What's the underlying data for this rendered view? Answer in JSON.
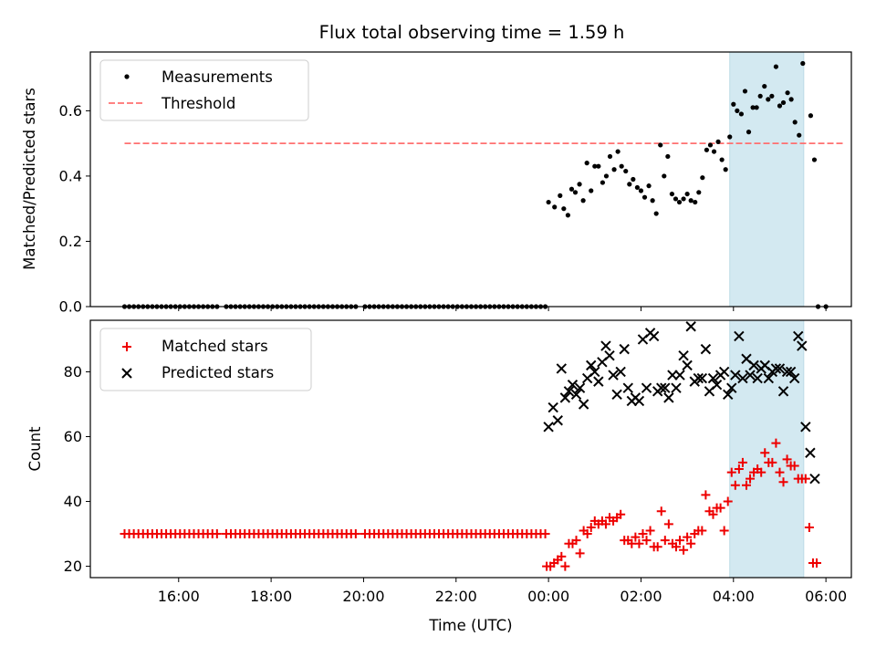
{
  "chart_data": {
    "type": "scatter",
    "title": "Flux total observing time = 1.59 h",
    "xlabel": "Time (UTC)",
    "x_ticks": [
      "16:00",
      "18:00",
      "20:00",
      "22:00",
      "00:00",
      "02:00",
      "04:00",
      "06:00"
    ],
    "x_tick_hours": [
      16,
      18,
      20,
      22,
      24,
      26,
      28,
      30
    ],
    "xlim_hours": [
      14.09,
      30.55
    ],
    "highlight_span_hours": [
      27.92,
      29.52
    ],
    "highlight_color": "#d3e9f1",
    "top": {
      "ylabel": "Matched/Predicted stars",
      "ylim": [
        0,
        0.78
      ],
      "y_ticks": [
        0.0,
        0.2,
        0.4,
        0.6
      ],
      "y_tick_labels": [
        "0.0",
        "0.2",
        "0.4",
        "0.6"
      ],
      "threshold": {
        "name": "Threshold",
        "value": 0.5,
        "x_range_hours": [
          14.83,
          30.42
        ],
        "color": "#ff7070"
      },
      "measurements": {
        "name": "Measurements",
        "color": "#000000",
        "zero_range_hours": [
          14.83,
          23.98
        ],
        "zero_step_hours": 0.1,
        "zero_gaps_hours": [
          [
            16.9,
            17.0
          ],
          [
            19.9,
            20.0
          ]
        ],
        "points": [
          [
            24.0,
            0.32
          ],
          [
            24.13,
            0.305
          ],
          [
            24.25,
            0.34
          ],
          [
            24.33,
            0.3
          ],
          [
            24.42,
            0.28
          ],
          [
            24.5,
            0.36
          ],
          [
            24.58,
            0.35
          ],
          [
            24.67,
            0.375
          ],
          [
            24.75,
            0.325
          ],
          [
            24.83,
            0.44
          ],
          [
            24.92,
            0.355
          ],
          [
            25.0,
            0.43
          ],
          [
            25.08,
            0.43
          ],
          [
            25.17,
            0.38
          ],
          [
            25.25,
            0.4
          ],
          [
            25.33,
            0.46
          ],
          [
            25.42,
            0.42
          ],
          [
            25.5,
            0.475
          ],
          [
            25.58,
            0.43
          ],
          [
            25.67,
            0.415
          ],
          [
            25.75,
            0.375
          ],
          [
            25.83,
            0.39
          ],
          [
            25.92,
            0.365
          ],
          [
            26.0,
            0.355
          ],
          [
            26.08,
            0.335
          ],
          [
            26.17,
            0.37
          ],
          [
            26.25,
            0.325
          ],
          [
            26.33,
            0.285
          ],
          [
            26.42,
            0.495
          ],
          [
            26.5,
            0.4
          ],
          [
            26.58,
            0.46
          ],
          [
            26.67,
            0.345
          ],
          [
            26.75,
            0.33
          ],
          [
            26.83,
            0.32
          ],
          [
            26.92,
            0.33
          ],
          [
            27.0,
            0.345
          ],
          [
            27.08,
            0.325
          ],
          [
            27.17,
            0.32
          ],
          [
            27.25,
            0.35
          ],
          [
            27.33,
            0.395
          ],
          [
            27.42,
            0.48
          ],
          [
            27.5,
            0.495
          ],
          [
            27.58,
            0.475
          ],
          [
            27.67,
            0.505
          ],
          [
            27.75,
            0.45
          ],
          [
            27.83,
            0.42
          ],
          [
            27.92,
            0.52
          ],
          [
            28.0,
            0.62
          ],
          [
            28.08,
            0.6
          ],
          [
            28.17,
            0.59
          ],
          [
            28.25,
            0.66
          ],
          [
            28.33,
            0.535
          ],
          [
            28.42,
            0.61
          ],
          [
            28.5,
            0.61
          ],
          [
            28.58,
            0.645
          ],
          [
            28.67,
            0.675
          ],
          [
            28.75,
            0.635
          ],
          [
            28.83,
            0.645
          ],
          [
            28.92,
            0.735
          ],
          [
            29.0,
            0.615
          ],
          [
            29.08,
            0.625
          ],
          [
            29.17,
            0.655
          ],
          [
            29.25,
            0.635
          ],
          [
            29.33,
            0.565
          ],
          [
            29.42,
            0.525
          ],
          [
            29.5,
            0.745
          ],
          [
            29.67,
            0.585
          ],
          [
            29.75,
            0.45
          ],
          [
            29.83,
            0.0
          ],
          [
            30.0,
            0.0
          ]
        ]
      }
    },
    "bottom": {
      "ylabel": "Count",
      "ylim": [
        16.5,
        95.9
      ],
      "y_ticks": [
        20,
        40,
        60,
        80
      ],
      "y_tick_labels": [
        "20",
        "40",
        "60",
        "80"
      ],
      "matched": {
        "name": "Matched stars",
        "color": "#ee0000",
        "const_range_hours": [
          14.83,
          23.98
        ],
        "const_value": 30,
        "const_step_hours": 0.1,
        "const_gaps_hours": [
          [
            16.9,
            17.0
          ],
          [
            19.9,
            20.0
          ]
        ],
        "points": [
          [
            23.96,
            20
          ],
          [
            24.04,
            20
          ],
          [
            24.12,
            21
          ],
          [
            24.2,
            22
          ],
          [
            24.28,
            23
          ],
          [
            24.36,
            20
          ],
          [
            24.44,
            27
          ],
          [
            24.52,
            27
          ],
          [
            24.6,
            28
          ],
          [
            24.68,
            24
          ],
          [
            24.76,
            31
          ],
          [
            24.84,
            30
          ],
          [
            24.92,
            32
          ],
          [
            25.0,
            34
          ],
          [
            25.08,
            33
          ],
          [
            25.16,
            34
          ],
          [
            25.24,
            33
          ],
          [
            25.32,
            35
          ],
          [
            25.4,
            34
          ],
          [
            25.48,
            35
          ],
          [
            25.56,
            36
          ],
          [
            25.64,
            28
          ],
          [
            25.72,
            28
          ],
          [
            25.8,
            27
          ],
          [
            25.88,
            29
          ],
          [
            25.96,
            27
          ],
          [
            26.04,
            30
          ],
          [
            26.12,
            28
          ],
          [
            26.2,
            31
          ],
          [
            26.28,
            26
          ],
          [
            26.36,
            26
          ],
          [
            26.44,
            37
          ],
          [
            26.52,
            28
          ],
          [
            26.6,
            33
          ],
          [
            26.68,
            27
          ],
          [
            26.76,
            26
          ],
          [
            26.84,
            28
          ],
          [
            26.92,
            25
          ],
          [
            27.0,
            29
          ],
          [
            27.08,
            27
          ],
          [
            27.16,
            30
          ],
          [
            27.24,
            31
          ],
          [
            27.32,
            31
          ],
          [
            27.4,
            42
          ],
          [
            27.48,
            37
          ],
          [
            27.56,
            36
          ],
          [
            27.64,
            38
          ],
          [
            27.72,
            38
          ],
          [
            27.8,
            31
          ],
          [
            27.88,
            40
          ],
          [
            27.96,
            49
          ],
          [
            28.04,
            45
          ],
          [
            28.12,
            50
          ],
          [
            28.2,
            52
          ],
          [
            28.28,
            45
          ],
          [
            28.36,
            47
          ],
          [
            28.44,
            49
          ],
          [
            28.52,
            50
          ],
          [
            28.6,
            49
          ],
          [
            28.68,
            55
          ],
          [
            28.76,
            52
          ],
          [
            28.84,
            52
          ],
          [
            28.92,
            58
          ],
          [
            29.0,
            49
          ],
          [
            29.08,
            46
          ],
          [
            29.16,
            53
          ],
          [
            29.24,
            51
          ],
          [
            29.32,
            51
          ],
          [
            29.4,
            47
          ],
          [
            29.48,
            47
          ],
          [
            29.56,
            47
          ],
          [
            29.64,
            32
          ],
          [
            29.72,
            21
          ],
          [
            29.8,
            21
          ]
        ]
      },
      "predicted": {
        "name": "Predicted stars",
        "color": "#000000",
        "points": [
          [
            24.0,
            63
          ],
          [
            24.1,
            69
          ],
          [
            24.2,
            65
          ],
          [
            24.28,
            81
          ],
          [
            24.36,
            72
          ],
          [
            24.44,
            74
          ],
          [
            24.52,
            76
          ],
          [
            24.6,
            73
          ],
          [
            24.68,
            75
          ],
          [
            24.76,
            70
          ],
          [
            24.84,
            78
          ],
          [
            24.92,
            82
          ],
          [
            25.0,
            80
          ],
          [
            25.08,
            77
          ],
          [
            25.16,
            83
          ],
          [
            25.24,
            88
          ],
          [
            25.32,
            85
          ],
          [
            25.4,
            79
          ],
          [
            25.48,
            73
          ],
          [
            25.56,
            80
          ],
          [
            25.64,
            87
          ],
          [
            25.72,
            75
          ],
          [
            25.8,
            71
          ],
          [
            25.88,
            72
          ],
          [
            25.96,
            71
          ],
          [
            26.04,
            90
          ],
          [
            26.12,
            75
          ],
          [
            26.2,
            92
          ],
          [
            26.28,
            91
          ],
          [
            26.36,
            74
          ],
          [
            26.44,
            75
          ],
          [
            26.52,
            75
          ],
          [
            26.6,
            72
          ],
          [
            26.68,
            79
          ],
          [
            26.76,
            75
          ],
          [
            26.84,
            79
          ],
          [
            26.92,
            85
          ],
          [
            27.0,
            82
          ],
          [
            27.08,
            94
          ],
          [
            27.16,
            77
          ],
          [
            27.24,
            78
          ],
          [
            27.32,
            78
          ],
          [
            27.4,
            87
          ],
          [
            27.48,
            74
          ],
          [
            27.56,
            78
          ],
          [
            27.64,
            76
          ],
          [
            27.72,
            79
          ],
          [
            27.8,
            80
          ],
          [
            27.88,
            73
          ],
          [
            27.96,
            75
          ],
          [
            28.04,
            79
          ],
          [
            28.12,
            91
          ],
          [
            28.2,
            78
          ],
          [
            28.28,
            84
          ],
          [
            28.36,
            79
          ],
          [
            28.44,
            82
          ],
          [
            28.52,
            78
          ],
          [
            28.6,
            81
          ],
          [
            28.68,
            82
          ],
          [
            28.76,
            78
          ],
          [
            28.84,
            80
          ],
          [
            28.92,
            81
          ],
          [
            29.0,
            81
          ],
          [
            29.08,
            74
          ],
          [
            29.16,
            80
          ],
          [
            29.24,
            80
          ],
          [
            29.32,
            78
          ],
          [
            29.4,
            91
          ],
          [
            29.48,
            88
          ],
          [
            29.56,
            63
          ],
          [
            29.66,
            55
          ],
          [
            29.76,
            47
          ]
        ]
      }
    },
    "legend_top": {
      "placement": "upper-left",
      "entries": [
        "Measurements",
        "Threshold"
      ]
    },
    "legend_bottom": {
      "placement": "upper-left",
      "entries": [
        "Matched stars",
        "Predicted stars"
      ]
    }
  }
}
